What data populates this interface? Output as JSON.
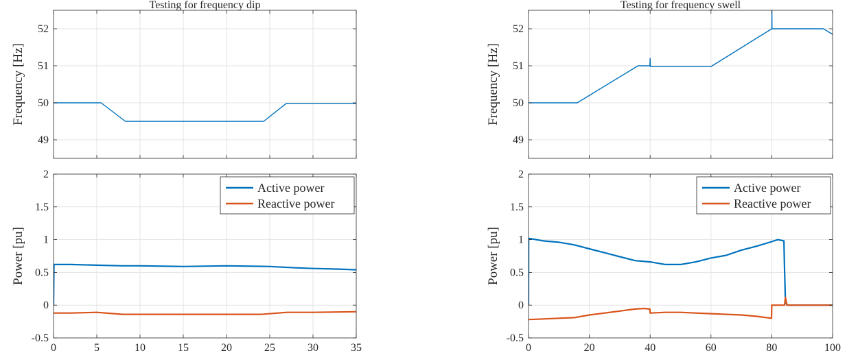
{
  "colors": {
    "active": "#0072BD",
    "reactive": "#D95319",
    "grid": "#e3e3e3",
    "axis": "#262626"
  },
  "chart_data": [
    {
      "type": "line",
      "title": "Testing for frequency dip",
      "xlabel": "",
      "ylabel": "Frequency [Hz]",
      "xlim": [
        0,
        35
      ],
      "ylim": [
        48.5,
        52.5
      ],
      "xticks": [
        0,
        5,
        10,
        15,
        20,
        25,
        30,
        35
      ],
      "xticklabels": [],
      "yticks": [
        49,
        50,
        51,
        52
      ],
      "yticklabels": [
        "49",
        "50",
        "51",
        "52"
      ],
      "grid": true,
      "series": [
        {
          "color_key": "active",
          "x": [
            0,
            5.5,
            8.3,
            24.3,
            26.9,
            35
          ],
          "y": [
            50.0,
            50.0,
            49.5,
            49.5,
            49.98,
            49.98
          ]
        }
      ]
    },
    {
      "type": "line",
      "title": "Testing for frequency swell",
      "xlabel": "",
      "ylabel": "Frequency [Hz]",
      "xlim": [
        0,
        100
      ],
      "ylim": [
        48.5,
        52.5
      ],
      "xticks": [
        0,
        20,
        40,
        60,
        80,
        100
      ],
      "xticklabels": [],
      "yticks": [
        49,
        50,
        51,
        52
      ],
      "yticklabels": [
        "49",
        "50",
        "51",
        "52"
      ],
      "grid": true,
      "series": [
        {
          "color_key": "active",
          "x": [
            0,
            16,
            36,
            39.9,
            40,
            40.1,
            60,
            80,
            80.05,
            80.1,
            97,
            100
          ],
          "y": [
            50.0,
            50.0,
            51.0,
            51.0,
            51.2,
            50.98,
            50.98,
            52.0,
            52.55,
            52.0,
            52.0,
            51.85
          ]
        }
      ]
    },
    {
      "type": "line",
      "title": "",
      "xlabel": "Time [s]",
      "ylabel": "Power [pu]",
      "xlim": [
        0,
        35
      ],
      "ylim": [
        -0.5,
        2
      ],
      "xticks": [
        0,
        5,
        10,
        15,
        20,
        25,
        30,
        35
      ],
      "xticklabels": [
        "0",
        "5",
        "10",
        "15",
        "20",
        "25",
        "30",
        "35"
      ],
      "yticks": [
        -0.5,
        0,
        0.5,
        1,
        1.5,
        2
      ],
      "yticklabels": [
        "-0.5",
        "0",
        "0.5",
        "1",
        "1.5",
        "2"
      ],
      "grid": true,
      "legend": {
        "position": "top-right",
        "entries": [
          "Active power",
          "Reactive power"
        ]
      },
      "series": [
        {
          "name": "Active power",
          "color_key": "active",
          "x": [
            0,
            0.05,
            2,
            5,
            8,
            10,
            15,
            20,
            25,
            28,
            30,
            33,
            35
          ],
          "y": [
            0.0,
            0.62,
            0.62,
            0.61,
            0.6,
            0.6,
            0.59,
            0.6,
            0.59,
            0.57,
            0.56,
            0.55,
            0.54
          ]
        },
        {
          "name": "Reactive power",
          "color_key": "reactive",
          "x": [
            0,
            2,
            5,
            8,
            10,
            15,
            20,
            24,
            27,
            30,
            35
          ],
          "y": [
            -0.12,
            -0.12,
            -0.11,
            -0.14,
            -0.14,
            -0.14,
            -0.14,
            -0.14,
            -0.11,
            -0.11,
            -0.1
          ]
        }
      ]
    },
    {
      "type": "line",
      "title": "",
      "xlabel": "Time [s]",
      "ylabel": "Power [pu]",
      "xlim": [
        0,
        100
      ],
      "ylim": [
        -0.5,
        2
      ],
      "xticks": [
        0,
        20,
        40,
        60,
        80,
        100
      ],
      "xticklabels": [
        "0",
        "20",
        "40",
        "60",
        "80",
        "100"
      ],
      "yticks": [
        -0.5,
        0,
        0.5,
        1,
        1.5,
        2
      ],
      "yticklabels": [
        "-0.5",
        "0",
        "0.5",
        "1",
        "1.5",
        "2"
      ],
      "grid": true,
      "legend": {
        "position": "top-right",
        "entries": [
          "Active power",
          "Reactive power"
        ]
      },
      "series": [
        {
          "name": "Active power",
          "color_key": "active",
          "x": [
            0,
            0.05,
            5,
            10,
            15,
            20,
            25,
            30,
            35,
            40,
            45,
            50,
            55,
            60,
            65,
            70,
            75,
            80,
            82,
            84,
            84.2,
            84.5,
            85,
            90,
            95,
            100
          ],
          "y": [
            0.0,
            1.02,
            0.98,
            0.96,
            0.92,
            0.86,
            0.8,
            0.74,
            0.68,
            0.66,
            0.62,
            0.62,
            0.66,
            0.72,
            0.76,
            0.84,
            0.9,
            0.97,
            1.0,
            0.98,
            0.55,
            0.05,
            0.0,
            0.0,
            0.0,
            0.0
          ]
        },
        {
          "name": "Reactive power",
          "color_key": "reactive",
          "x": [
            0,
            5,
            10,
            15,
            20,
            25,
            30,
            35,
            38,
            39.9,
            40,
            45,
            50,
            55,
            60,
            65,
            70,
            75,
            79.9,
            80,
            84,
            84.2,
            84.5,
            85,
            90,
            95,
            100
          ],
          "y": [
            -0.22,
            -0.21,
            -0.2,
            -0.19,
            -0.15,
            -0.12,
            -0.09,
            -0.06,
            -0.05,
            -0.06,
            -0.12,
            -0.11,
            -0.11,
            -0.12,
            -0.13,
            -0.14,
            -0.15,
            -0.17,
            -0.2,
            0.0,
            0.0,
            0.0,
            0.12,
            0.0,
            0.0,
            0.0,
            0.0
          ]
        }
      ]
    }
  ]
}
